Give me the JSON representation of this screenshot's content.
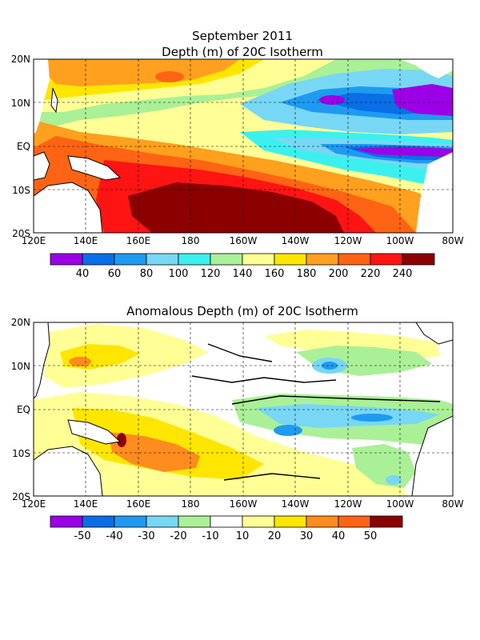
{
  "top_panel": {
    "title_line1": "September 2011",
    "title_line2": "Depth (m) of 20C Isotherm",
    "lat_labels": [
      "20N",
      "10N",
      "EQ",
      "10S",
      "20S"
    ],
    "lon_labels": [
      "120E",
      "140E",
      "160E",
      "180",
      "160W",
      "140W",
      "120W",
      "100W",
      "80W"
    ],
    "colorbar": {
      "colors": [
        "#9b00e6",
        "#0a6ee6",
        "#1e9bf0",
        "#78d7f5",
        "#3cf0f0",
        "#aaf096",
        "#ffff96",
        "#ffe600",
        "#ffa01e",
        "#ff6414",
        "#ff1414",
        "#8c0000"
      ],
      "labels": [
        "40",
        "60",
        "80",
        "100",
        "120",
        "140",
        "160",
        "180",
        "200",
        "220",
        "240"
      ]
    }
  },
  "bottom_panel": {
    "title": "Anomalous Depth (m) of 20C Isotherm",
    "lat_labels": [
      "20N",
      "10N",
      "EQ",
      "10S",
      "20S"
    ],
    "lon_labels": [
      "120E",
      "140E",
      "160E",
      "180",
      "160W",
      "140W",
      "120W",
      "100W",
      "80W"
    ],
    "colorbar": {
      "colors": [
        "#9b00e6",
        "#0a6ee6",
        "#1e9bf0",
        "#78d7f5",
        "#aaf096",
        "#ffffff",
        "#ffff96",
        "#ffe600",
        "#ff8c1e",
        "#ff6414",
        "#8c0000"
      ],
      "labels": [
        "-50",
        "-40",
        "-30",
        "-20",
        "-10",
        "10",
        "20",
        "30",
        "40",
        "50"
      ]
    }
  }
}
